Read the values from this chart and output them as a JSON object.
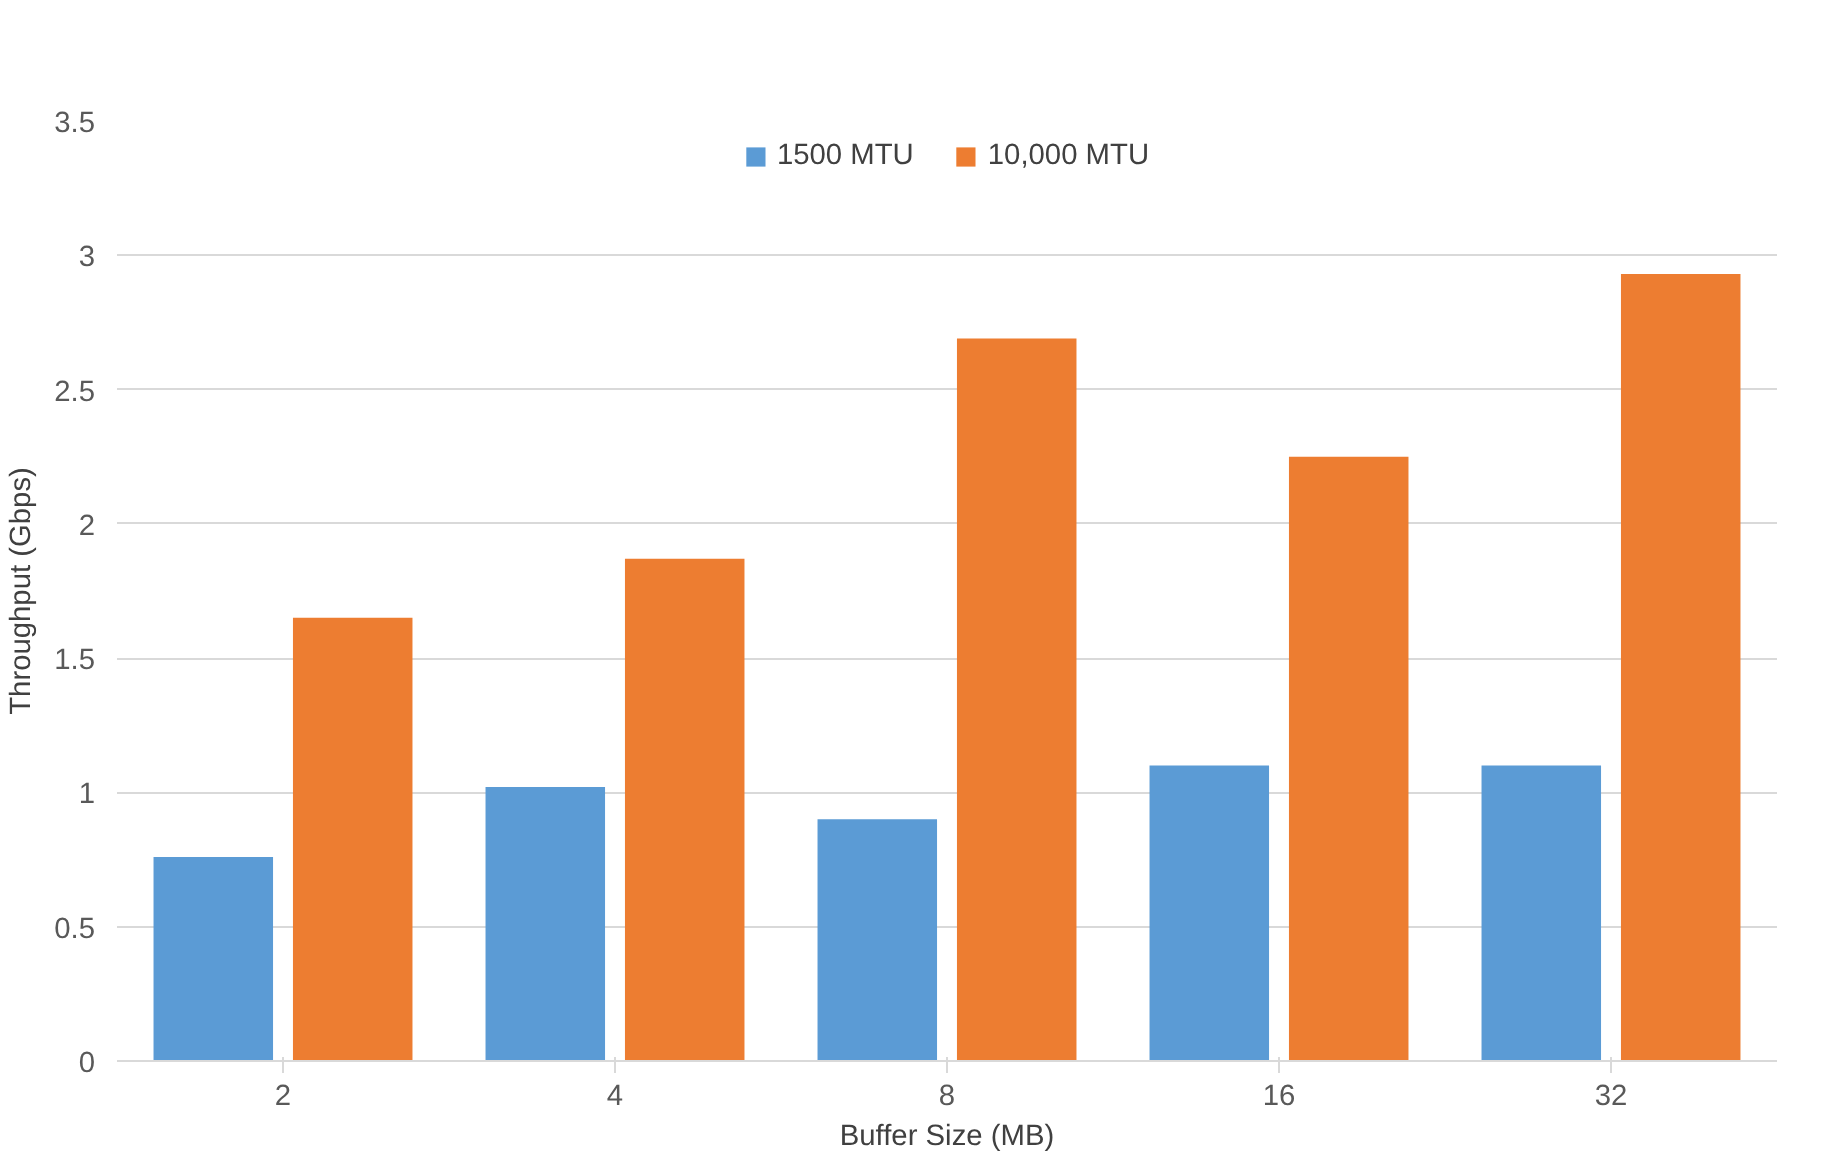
{
  "chart_data": {
    "type": "bar",
    "xlabel": "Buffer Size (MB)",
    "ylabel": "Throughput (Gbps)",
    "categories": [
      "2",
      "4",
      "8",
      "16",
      "32"
    ],
    "series": [
      {
        "name": "1500 MTU",
        "color": "#5b9bd5",
        "values": [
          0.76,
          1.02,
          0.9,
          1.1,
          1.1
        ]
      },
      {
        "name": "10,000 MTU",
        "color": "#ed7d31",
        "values": [
          1.65,
          1.87,
          2.69,
          2.25,
          2.93
        ]
      }
    ],
    "ylim": [
      0,
      3.5
    ],
    "yticks": [
      0,
      0.5,
      1,
      1.5,
      2,
      2.5,
      3,
      3.5
    ],
    "grid": "y",
    "legend": "top"
  }
}
